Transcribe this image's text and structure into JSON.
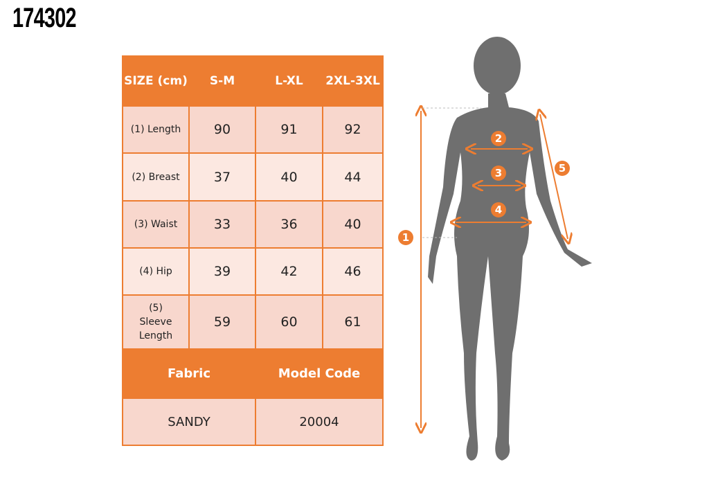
{
  "product_code": "174302",
  "table": {
    "header": [
      "SIZE (cm)",
      "S-M",
      "L-XL",
      "2XL-3XL"
    ],
    "rows": [
      {
        "label": "(1) Length",
        "values": [
          "90",
          "91",
          "92"
        ]
      },
      {
        "label": "(2) Breast",
        "values": [
          "37",
          "40",
          "44"
        ]
      },
      {
        "label": "(3) Waist",
        "values": [
          "33",
          "36",
          "40"
        ]
      },
      {
        "label": "(4) Hip",
        "values": [
          "39",
          "42",
          "46"
        ]
      },
      {
        "label": "(5) Sleeve Length",
        "values": [
          "59",
          "60",
          "61"
        ]
      }
    ],
    "footer_header": [
      "Fabric",
      "Model Code"
    ],
    "footer_values": [
      "SANDY",
      "20004"
    ]
  },
  "figure": {
    "markers": [
      "1",
      "2",
      "3",
      "4",
      "5"
    ]
  },
  "colors": {
    "accent": "#ed7d31",
    "row_dark": "#f8d7cd",
    "row_light": "#fce8e1",
    "silhouette": "#6f6f6f"
  }
}
